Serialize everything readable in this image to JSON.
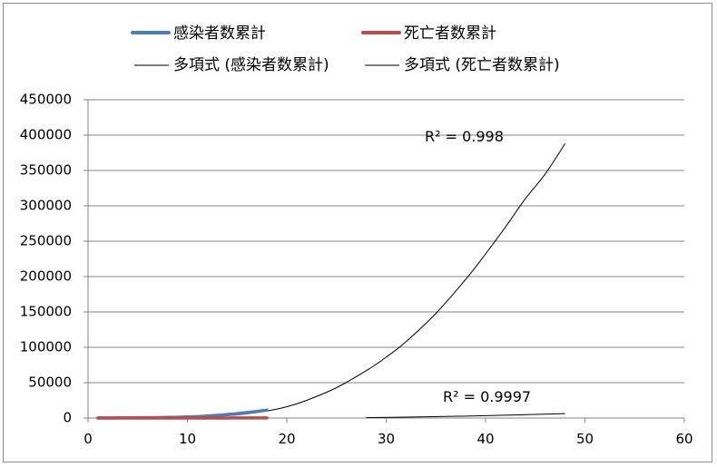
{
  "chart_data": {
    "type": "line",
    "title": "",
    "xlabel": "",
    "ylabel": "",
    "xlim": [
      0,
      60
    ],
    "ylim": [
      0,
      450000
    ],
    "x_ticks": [
      "0",
      "10",
      "20",
      "30",
      "40",
      "50",
      "60"
    ],
    "y_ticks": [
      "0",
      "50000",
      "100000",
      "150000",
      "200000",
      "250000",
      "300000",
      "350000",
      "400000",
      "450000"
    ],
    "grid": "horizontal",
    "legend_position": "top",
    "series": [
      {
        "name": "感染者数累計",
        "color": "#4a7ebb",
        "x": [
          1,
          2,
          3,
          4,
          5,
          6,
          7,
          8,
          9,
          10,
          11,
          12,
          13,
          14,
          15,
          16,
          17,
          18
        ],
        "y": [
          100,
          150,
          200,
          300,
          400,
          500,
          700,
          900,
          1200,
          1500,
          2100,
          2900,
          3800,
          5000,
          6300,
          7700,
          9400,
          11200
        ]
      },
      {
        "name": "死亡者数累計",
        "color": "#be4b48",
        "x": [
          1,
          2,
          3,
          4,
          5,
          6,
          7,
          8,
          9,
          10,
          11,
          12,
          13,
          14,
          15,
          16,
          17,
          18
        ],
        "y": [
          0,
          0,
          0,
          0,
          0,
          0,
          0,
          0,
          10,
          10,
          20,
          30,
          50,
          60,
          80,
          100,
          120,
          150
        ]
      }
    ],
    "trendlines": [
      {
        "name": "多項式 (感染者数累計)",
        "type": "polynomial",
        "x_range": [
          1,
          48
        ],
        "r2_label": "R² = 0.998",
        "x": [
          1,
          3,
          5,
          8,
          10,
          12,
          15,
          18,
          20,
          22,
          25,
          28,
          30,
          32,
          35,
          38,
          40,
          42,
          44,
          46,
          48
        ],
        "y": [
          500,
          200,
          100,
          300,
          800,
          1700,
          4500,
          10000,
          16000,
          25000,
          43000,
          67000,
          86000,
          108000,
          148000,
          196000,
          232000,
          270000,
          310000,
          345000,
          388000
        ]
      },
      {
        "name": "多項式 (死亡者数累計)",
        "type": "polynomial",
        "x_range": [
          28,
          48
        ],
        "r2_label": "R² = 0.9997",
        "x": [
          28,
          32,
          36,
          40,
          44,
          48
        ],
        "y": [
          700,
          1300,
          2200,
          3300,
          4700,
          6300
        ]
      }
    ]
  }
}
